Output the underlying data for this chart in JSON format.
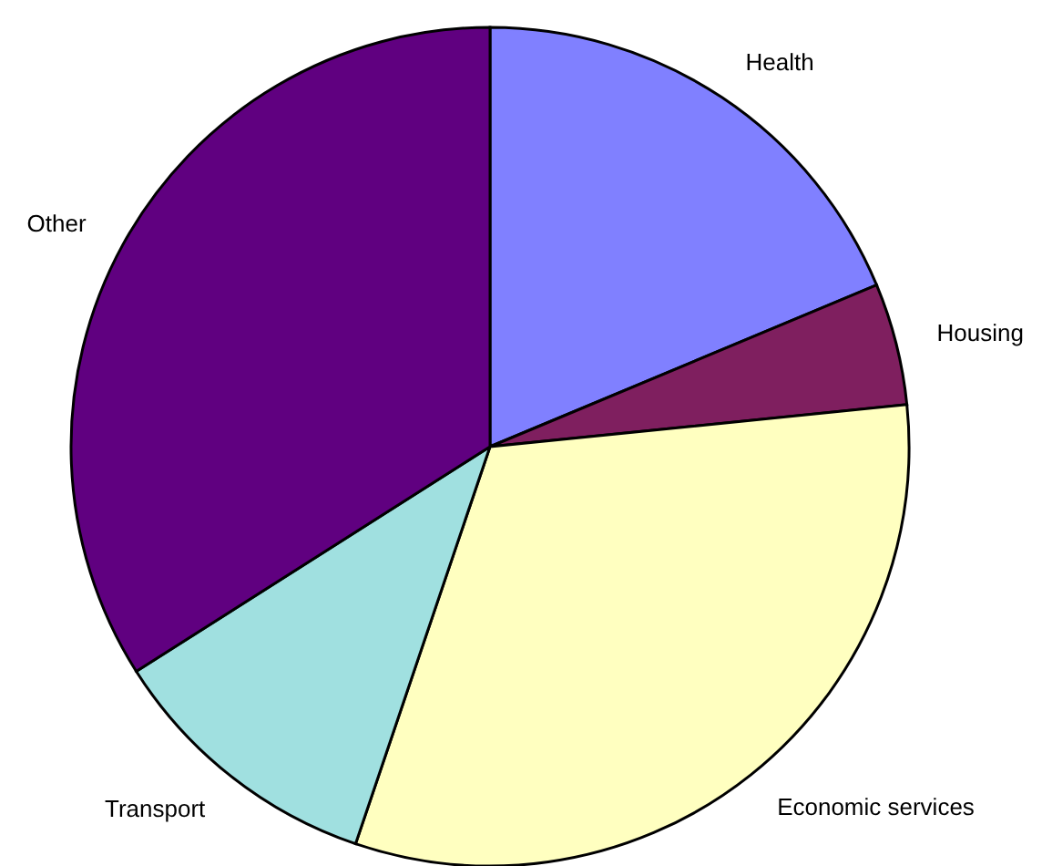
{
  "chart_data": {
    "type": "pie",
    "categories": [
      "Health",
      "Housing",
      "Economic services",
      "Transport",
      "Other"
    ],
    "values": [
      18.7,
      4.7,
      31.8,
      10.8,
      34.0
    ],
    "colors": [
      "#8080ff",
      "#7f1f5f",
      "#ffffc0",
      "#a0e0e0",
      "#600080"
    ]
  }
}
